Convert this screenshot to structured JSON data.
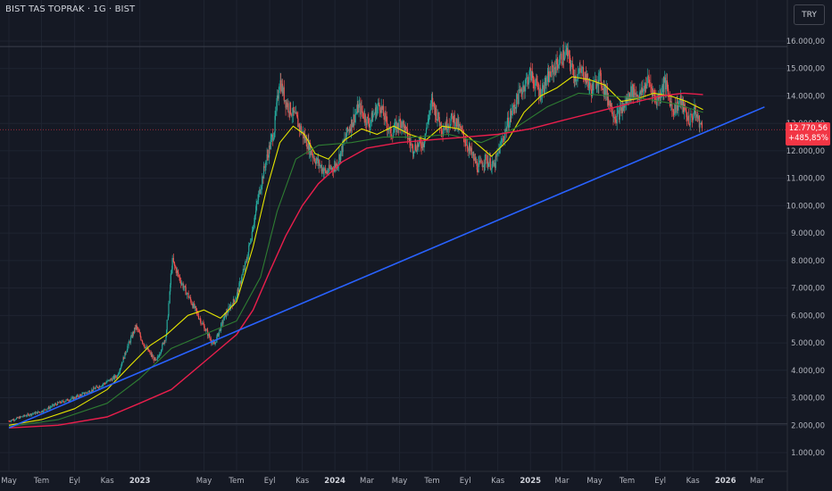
{
  "header": {
    "title": "BIST TAS TOPRAK · 1G · BIST",
    "currency": "TRY"
  },
  "colors": {
    "background": "#151924",
    "grid": "#1f2431",
    "text": "#b2b5be",
    "candle_up": "#26a69a",
    "candle_down": "#ef5350",
    "ma_fast": "#e6e600",
    "ma_mid": "#2e7d32",
    "ma_slow": "#e91e4c",
    "trendline": "#2962ff",
    "price_line": "#f23645",
    "price_tag": "#f23645"
  },
  "chart_data": {
    "type": "line",
    "y_axis": {
      "range": [
        0,
        16500
      ],
      "ticks": [
        1000,
        2000,
        3000,
        4000,
        5000,
        6000,
        7000,
        8000,
        9000,
        10000,
        11000,
        12000,
        13000,
        14000,
        15000,
        16000
      ],
      "tick_labels": [
        "1.000,00",
        "2.000,00",
        "3.000,00",
        "4.000,00",
        "5.000,00",
        "6.000,00",
        "7.000,00",
        "8.000,00",
        "9.000,00",
        "10.000,00",
        "11.000,00",
        "12.000,00",
        "13.000,00",
        "14.000,00",
        "15.000,00",
        "16.000,00"
      ]
    },
    "x_axis": {
      "range": [
        "2022-05-01",
        "2026-03-20"
      ],
      "ticks": [
        {
          "date": "2022-05-01",
          "label": "May"
        },
        {
          "date": "2022-07-01",
          "label": "Tem"
        },
        {
          "date": "2022-09-01",
          "label": "Eyl"
        },
        {
          "date": "2022-11-01",
          "label": "Kas"
        },
        {
          "date": "2023-01-01",
          "label": "2023"
        },
        {
          "date": "2023-05-01",
          "label": "May"
        },
        {
          "date": "2023-07-01",
          "label": "Tem"
        },
        {
          "date": "2023-09-01",
          "label": "Eyl"
        },
        {
          "date": "2023-11-01",
          "label": "Kas"
        },
        {
          "date": "2024-01-01",
          "label": "2024"
        },
        {
          "date": "2024-03-01",
          "label": "Mar"
        },
        {
          "date": "2024-05-01",
          "label": "May"
        },
        {
          "date": "2024-07-01",
          "label": "Tem"
        },
        {
          "date": "2024-09-01",
          "label": "Eyl"
        },
        {
          "date": "2024-11-01",
          "label": "Kas"
        },
        {
          "date": "2025-01-01",
          "label": "2025"
        },
        {
          "date": "2025-03-01",
          "label": "Mar"
        },
        {
          "date": "2025-05-01",
          "label": "May"
        },
        {
          "date": "2025-07-01",
          "label": "Tem"
        },
        {
          "date": "2025-09-01",
          "label": "Eyl"
        },
        {
          "date": "2025-11-01",
          "label": "Kas"
        },
        {
          "date": "2026-01-01",
          "label": "2026"
        },
        {
          "date": "2026-03-01",
          "label": "Mar"
        }
      ]
    },
    "horizontal_levels": [
      15800,
      2050
    ],
    "last_price": {
      "value": 12770.56,
      "label": "12.770,56",
      "change_label": "+485,85%"
    },
    "series": [
      {
        "role": "price",
        "points": [
          [
            "2022-05-01",
            2150
          ],
          [
            "2022-06-01",
            2350
          ],
          [
            "2022-07-01",
            2500
          ],
          [
            "2022-08-01",
            2800
          ],
          [
            "2022-09-01",
            3000
          ],
          [
            "2022-10-01",
            3250
          ],
          [
            "2022-10-25",
            3500
          ],
          [
            "2022-11-20",
            3800
          ],
          [
            "2022-12-10",
            4900
          ],
          [
            "2022-12-25",
            5600
          ],
          [
            "2023-01-10",
            4900
          ],
          [
            "2023-02-01",
            4300
          ],
          [
            "2023-02-20",
            5300
          ],
          [
            "2023-03-03",
            8000
          ],
          [
            "2023-03-20",
            7200
          ],
          [
            "2023-04-10",
            6400
          ],
          [
            "2023-05-01",
            5600
          ],
          [
            "2023-05-20",
            4900
          ],
          [
            "2023-06-10",
            6000
          ],
          [
            "2023-07-01",
            6700
          ],
          [
            "2023-07-20",
            8000
          ],
          [
            "2023-08-10",
            10200
          ],
          [
            "2023-08-25",
            11600
          ],
          [
            "2023-09-10",
            12800
          ],
          [
            "2023-09-20",
            14600
          ],
          [
            "2023-10-01",
            13800
          ],
          [
            "2023-10-20",
            13200
          ],
          [
            "2023-11-05",
            12500
          ],
          [
            "2023-11-25",
            11700
          ],
          [
            "2023-12-15",
            11200
          ],
          [
            "2024-01-05",
            11500
          ],
          [
            "2024-01-25",
            12700
          ],
          [
            "2024-02-15",
            13600
          ],
          [
            "2024-03-05",
            13000
          ],
          [
            "2024-03-25",
            13700
          ],
          [
            "2024-04-15",
            12600
          ],
          [
            "2024-05-05",
            13100
          ],
          [
            "2024-05-25",
            12100
          ],
          [
            "2024-06-15",
            12300
          ],
          [
            "2024-07-01",
            13800
          ],
          [
            "2024-07-20",
            12800
          ],
          [
            "2024-08-10",
            13200
          ],
          [
            "2024-08-25",
            12700
          ],
          [
            "2024-09-10",
            12000
          ],
          [
            "2024-09-25",
            11400
          ],
          [
            "2024-10-10",
            11700
          ],
          [
            "2024-10-25",
            11400
          ],
          [
            "2024-11-10",
            12400
          ],
          [
            "2024-11-25",
            13300
          ],
          [
            "2024-12-15",
            14200
          ],
          [
            "2025-01-01",
            14800
          ],
          [
            "2025-01-20",
            14100
          ],
          [
            "2025-02-05",
            14700
          ],
          [
            "2025-02-25",
            15300
          ],
          [
            "2025-03-10",
            15600
          ],
          [
            "2025-03-25",
            14700
          ],
          [
            "2025-04-10",
            14900
          ],
          [
            "2025-04-25",
            14200
          ],
          [
            "2025-05-10",
            14700
          ],
          [
            "2025-05-25",
            14000
          ],
          [
            "2025-06-10",
            13200
          ],
          [
            "2025-06-25",
            13600
          ],
          [
            "2025-07-10",
            14200
          ],
          [
            "2025-07-25",
            14000
          ],
          [
            "2025-08-10",
            14600
          ],
          [
            "2025-08-25",
            13800
          ],
          [
            "2025-09-10",
            14500
          ],
          [
            "2025-09-25",
            13500
          ],
          [
            "2025-10-10",
            13800
          ],
          [
            "2025-10-25",
            13100
          ],
          [
            "2025-11-05",
            13400
          ],
          [
            "2025-11-20",
            12770.56
          ]
        ]
      },
      {
        "role": "ma_fast",
        "points": [
          [
            "2022-05-01",
            2000
          ],
          [
            "2022-07-01",
            2200
          ],
          [
            "2022-09-01",
            2600
          ],
          [
            "2022-11-01",
            3300
          ],
          [
            "2022-12-15",
            4200
          ],
          [
            "2023-01-20",
            4900
          ],
          [
            "2023-02-20",
            5300
          ],
          [
            "2023-04-01",
            6000
          ],
          [
            "2023-05-01",
            6200
          ],
          [
            "2023-06-01",
            5900
          ],
          [
            "2023-07-01",
            6500
          ],
          [
            "2023-08-01",
            8500
          ],
          [
            "2023-08-25",
            10500
          ],
          [
            "2023-09-20",
            12300
          ],
          [
            "2023-10-15",
            12900
          ],
          [
            "2023-11-05",
            12600
          ],
          [
            "2023-11-25",
            11900
          ],
          [
            "2023-12-20",
            11700
          ],
          [
            "2024-01-20",
            12400
          ],
          [
            "2024-02-20",
            12800
          ],
          [
            "2024-03-20",
            12600
          ],
          [
            "2024-04-20",
            12900
          ],
          [
            "2024-05-20",
            12600
          ],
          [
            "2024-06-20",
            12400
          ],
          [
            "2024-07-20",
            12900
          ],
          [
            "2024-08-20",
            12800
          ],
          [
            "2024-09-20",
            12300
          ],
          [
            "2024-10-20",
            11800
          ],
          [
            "2024-11-20",
            12400
          ],
          [
            "2024-12-20",
            13400
          ],
          [
            "2025-01-20",
            14000
          ],
          [
            "2025-02-20",
            14300
          ],
          [
            "2025-03-20",
            14700
          ],
          [
            "2025-04-20",
            14600
          ],
          [
            "2025-05-20",
            14400
          ],
          [
            "2025-06-20",
            13800
          ],
          [
            "2025-07-20",
            13900
          ],
          [
            "2025-08-20",
            14100
          ],
          [
            "2025-09-20",
            14000
          ],
          [
            "2025-10-20",
            13800
          ],
          [
            "2025-11-20",
            13500
          ]
        ]
      },
      {
        "role": "ma_mid",
        "points": [
          [
            "2022-05-01",
            1950
          ],
          [
            "2022-08-01",
            2200
          ],
          [
            "2022-11-01",
            2800
          ],
          [
            "2023-01-01",
            3700
          ],
          [
            "2023-03-01",
            4800
          ],
          [
            "2023-05-01",
            5300
          ],
          [
            "2023-07-01",
            5800
          ],
          [
            "2023-08-15",
            7400
          ],
          [
            "2023-09-15",
            9800
          ],
          [
            "2023-10-20",
            11700
          ],
          [
            "2023-12-01",
            12200
          ],
          [
            "2024-02-01",
            12300
          ],
          [
            "2024-04-01",
            12500
          ],
          [
            "2024-06-01",
            12500
          ],
          [
            "2024-08-01",
            12600
          ],
          [
            "2024-10-01",
            12300
          ],
          [
            "2024-12-01",
            12800
          ],
          [
            "2025-02-01",
            13600
          ],
          [
            "2025-04-01",
            14100
          ],
          [
            "2025-06-01",
            14000
          ],
          [
            "2025-08-01",
            13900
          ],
          [
            "2025-10-01",
            13700
          ],
          [
            "2025-11-20",
            13400
          ]
        ]
      },
      {
        "role": "ma_slow",
        "points": [
          [
            "2022-05-01",
            1900
          ],
          [
            "2022-08-01",
            2000
          ],
          [
            "2022-11-01",
            2300
          ],
          [
            "2023-01-01",
            2800
          ],
          [
            "2023-03-01",
            3300
          ],
          [
            "2023-05-01",
            4300
          ],
          [
            "2023-07-01",
            5300
          ],
          [
            "2023-08-01",
            6200
          ],
          [
            "2023-09-01",
            7600
          ],
          [
            "2023-10-01",
            8900
          ],
          [
            "2023-11-01",
            10000
          ],
          [
            "2023-12-01",
            10800
          ],
          [
            "2024-01-15",
            11600
          ],
          [
            "2024-03-01",
            12100
          ],
          [
            "2024-05-01",
            12300
          ],
          [
            "2024-07-01",
            12400
          ],
          [
            "2024-09-01",
            12500
          ],
          [
            "2024-11-01",
            12600
          ],
          [
            "2025-01-01",
            12800
          ],
          [
            "2025-03-01",
            13100
          ],
          [
            "2025-05-01",
            13400
          ],
          [
            "2025-07-01",
            13700
          ],
          [
            "2025-09-01",
            14000
          ],
          [
            "2025-10-15",
            14100
          ],
          [
            "2025-11-20",
            14050
          ]
        ]
      },
      {
        "role": "trendline",
        "points": [
          [
            "2022-05-01",
            1900
          ],
          [
            "2026-03-15",
            13600
          ]
        ]
      }
    ]
  }
}
